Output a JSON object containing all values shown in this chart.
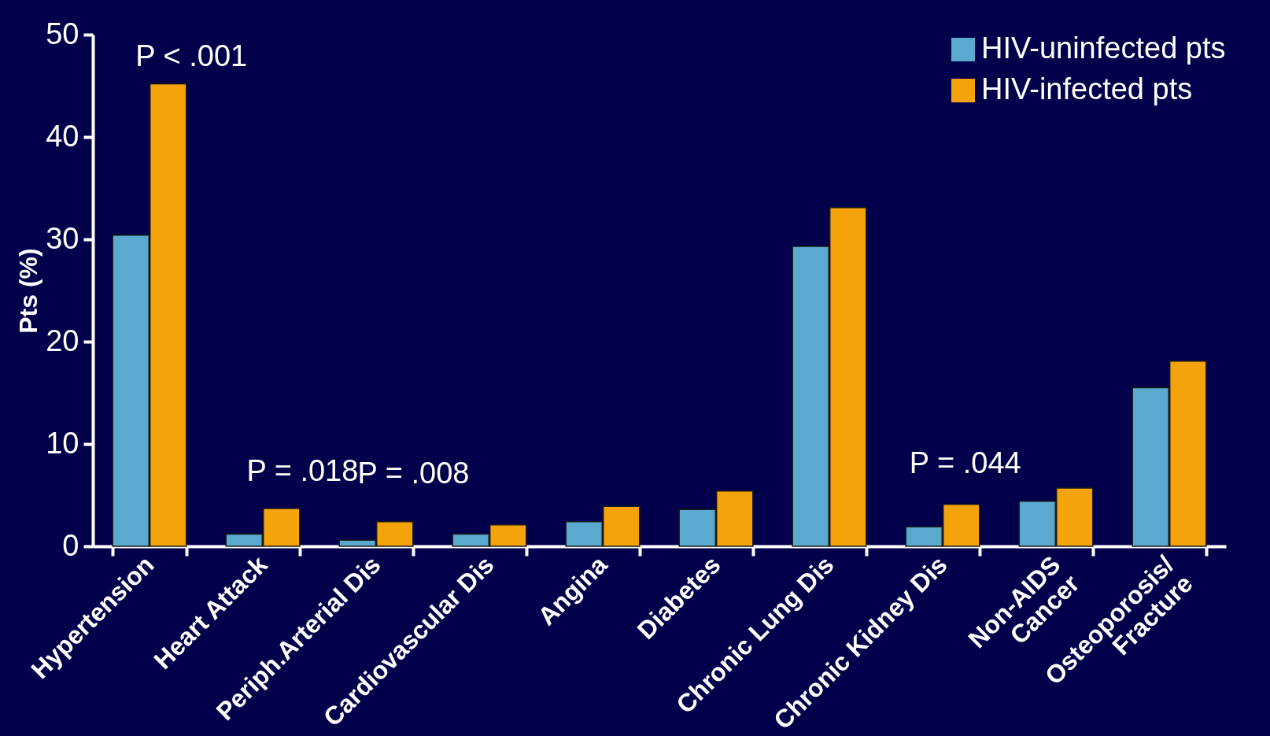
{
  "chart_data": {
    "type": "bar",
    "ylabel": "Pts (%)",
    "categories": [
      "Hypertension",
      "Heart  Attack",
      "Periph.Arterial Dis",
      "Cardiovascular Dis",
      "Angina",
      "Diabetes",
      "Chronic Lung Dis",
      "Chronic Kidney Dis",
      "Non-AIDS\nCancer",
      "Osteoporosis/\nFracture"
    ],
    "series": [
      {
        "name": "HIV-uninfected pts",
        "color": "#5aa9cf",
        "values": [
          30.4,
          1.2,
          0.6,
          1.2,
          2.4,
          3.6,
          29.3,
          1.9,
          4.4,
          15.5
        ]
      },
      {
        "name": "HIV-infected pts",
        "color": "#f5a30a",
        "values": [
          45.2,
          3.7,
          2.4,
          2.1,
          3.9,
          5.4,
          33.1,
          4.1,
          5.7,
          18.1
        ]
      }
    ],
    "ylim": [
      0,
      50
    ],
    "yticks": [
      0,
      10,
      20,
      30,
      40,
      50
    ],
    "annotations": [
      "P < .001",
      "P = .018",
      "P = .008",
      "P = .044"
    ],
    "legend": "top right",
    "grid": false
  }
}
